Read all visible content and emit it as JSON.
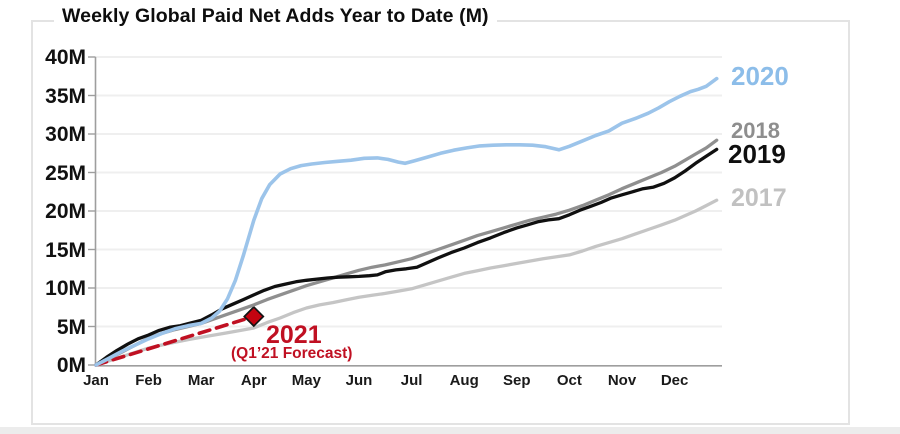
{
  "chart_data": {
    "type": "line",
    "title": "Weekly Global Paid Net Adds Year to Date (M)",
    "xlabel": "",
    "ylabel": "",
    "x_unit": "months, Jan = 0",
    "x_tick_labels": [
      "Jan",
      "Feb",
      "Mar",
      "Apr",
      "May",
      "Jun",
      "Jul",
      "Aug",
      "Sep",
      "Oct",
      "Nov",
      "Dec"
    ],
    "y_tick_labels": [
      "0M",
      "5M",
      "10M",
      "15M",
      "20M",
      "25M",
      "30M",
      "35M",
      "40M"
    ],
    "y_tick_values": [
      0,
      5,
      10,
      15,
      20,
      25,
      30,
      35,
      40
    ],
    "ylim": [
      0,
      40
    ],
    "xlim_months": [
      0,
      11.8
    ],
    "grid": "horizontal-light",
    "legend_position": "right-end-of-line-labels",
    "axis_color": "#9e9e9e",
    "grid_color": "#efefef",
    "series": [
      {
        "name": "2017",
        "color": "#c5c5c5",
        "label_color": "#c1c1c1",
        "style": "solid",
        "points": [
          [
            0,
            0
          ],
          [
            0.25,
            0.55
          ],
          [
            0.5,
            1.1
          ],
          [
            0.75,
            1.65
          ],
          [
            1,
            2.2
          ],
          [
            1.25,
            2.6
          ],
          [
            1.5,
            2.95
          ],
          [
            1.75,
            3.3
          ],
          [
            2,
            3.6
          ],
          [
            2.25,
            3.9
          ],
          [
            2.5,
            4.2
          ],
          [
            2.75,
            4.5
          ],
          [
            3,
            4.8
          ],
          [
            3.25,
            5.5
          ],
          [
            3.5,
            6.1
          ],
          [
            3.75,
            6.8
          ],
          [
            4,
            7.4
          ],
          [
            4.25,
            7.8
          ],
          [
            4.5,
            8.1
          ],
          [
            4.75,
            8.45
          ],
          [
            5,
            8.8
          ],
          [
            5.25,
            9.05
          ],
          [
            5.5,
            9.3
          ],
          [
            5.75,
            9.6
          ],
          [
            6,
            9.9
          ],
          [
            6.25,
            10.4
          ],
          [
            6.5,
            10.9
          ],
          [
            6.75,
            11.4
          ],
          [
            7,
            11.9
          ],
          [
            7.25,
            12.25
          ],
          [
            7.5,
            12.6
          ],
          [
            7.75,
            12.9
          ],
          [
            8,
            13.2
          ],
          [
            8.5,
            13.8
          ],
          [
            9,
            14.3
          ],
          [
            9.25,
            14.8
          ],
          [
            9.5,
            15.4
          ],
          [
            9.75,
            15.9
          ],
          [
            10,
            16.4
          ],
          [
            10.25,
            17.0
          ],
          [
            10.5,
            17.6
          ],
          [
            10.75,
            18.2
          ],
          [
            11,
            18.8
          ],
          [
            11.2,
            19.4
          ],
          [
            11.4,
            20.0
          ],
          [
            11.6,
            20.7
          ],
          [
            11.8,
            21.4
          ]
        ]
      },
      {
        "name": "2021",
        "color": "#c01022",
        "label_color": "#c01022",
        "style": "dashed",
        "annotation_sub": "(Q1’21 Forecast)",
        "points": [
          [
            0,
            0
          ],
          [
            3,
            6.3
          ]
        ],
        "marker": {
          "shape": "diamond",
          "month": 3,
          "value": 6.3,
          "fill": "#c40310",
          "stroke": "#141414"
        }
      },
      {
        "name": "2018",
        "color": "#8f8f8f",
        "label_color": "#8e8e8e",
        "style": "solid",
        "points": [
          [
            0,
            0
          ],
          [
            0.25,
            0.85
          ],
          [
            0.5,
            1.7
          ],
          [
            0.75,
            2.6
          ],
          [
            1,
            3.5
          ],
          [
            1.25,
            4.1
          ],
          [
            1.5,
            4.6
          ],
          [
            1.75,
            5.0
          ],
          [
            2,
            5.4
          ],
          [
            2.25,
            6.0
          ],
          [
            2.5,
            6.6
          ],
          [
            2.75,
            7.2
          ],
          [
            3,
            7.8
          ],
          [
            3.25,
            8.5
          ],
          [
            3.5,
            9.1
          ],
          [
            3.75,
            9.7
          ],
          [
            4,
            10.3
          ],
          [
            4.25,
            10.8
          ],
          [
            4.5,
            11.3
          ],
          [
            4.75,
            11.8
          ],
          [
            5,
            12.3
          ],
          [
            5.25,
            12.7
          ],
          [
            5.5,
            13.0
          ],
          [
            5.75,
            13.4
          ],
          [
            6,
            13.8
          ],
          [
            6.25,
            14.4
          ],
          [
            6.5,
            15.0
          ],
          [
            6.75,
            15.6
          ],
          [
            7,
            16.2
          ],
          [
            7.25,
            16.8
          ],
          [
            7.5,
            17.3
          ],
          [
            7.75,
            17.8
          ],
          [
            8,
            18.3
          ],
          [
            8.25,
            18.8
          ],
          [
            8.5,
            19.2
          ],
          [
            8.75,
            19.6
          ],
          [
            9,
            20.1
          ],
          [
            9.25,
            20.7
          ],
          [
            9.5,
            21.4
          ],
          [
            9.75,
            22.1
          ],
          [
            10,
            22.9
          ],
          [
            10.25,
            23.6
          ],
          [
            10.5,
            24.3
          ],
          [
            10.75,
            25.0
          ],
          [
            11,
            25.8
          ],
          [
            11.2,
            26.6
          ],
          [
            11.4,
            27.4
          ],
          [
            11.6,
            28.2
          ],
          [
            11.8,
            29.2
          ]
        ]
      },
      {
        "name": "2019",
        "color": "#101010",
        "label_color": "#0f0f0f",
        "style": "solid",
        "points": [
          [
            0,
            0
          ],
          [
            0.2,
            1.0
          ],
          [
            0.4,
            1.9
          ],
          [
            0.6,
            2.7
          ],
          [
            0.8,
            3.4
          ],
          [
            1,
            3.9
          ],
          [
            1.2,
            4.5
          ],
          [
            1.4,
            4.9
          ],
          [
            1.6,
            5.1
          ],
          [
            1.8,
            5.45
          ],
          [
            2,
            5.8
          ],
          [
            2.2,
            6.5
          ],
          [
            2.4,
            7.3
          ],
          [
            2.6,
            7.9
          ],
          [
            2.8,
            8.5
          ],
          [
            3,
            9.1
          ],
          [
            3.2,
            9.7
          ],
          [
            3.4,
            10.2
          ],
          [
            3.6,
            10.5
          ],
          [
            3.8,
            10.8
          ],
          [
            4,
            11.0
          ],
          [
            4.2,
            11.15
          ],
          [
            4.4,
            11.3
          ],
          [
            4.6,
            11.4
          ],
          [
            4.8,
            11.45
          ],
          [
            5,
            11.5
          ],
          [
            5.2,
            11.6
          ],
          [
            5.35,
            11.7
          ],
          [
            5.5,
            12.1
          ],
          [
            5.7,
            12.35
          ],
          [
            5.9,
            12.5
          ],
          [
            6.1,
            12.7
          ],
          [
            6.3,
            13.3
          ],
          [
            6.5,
            13.9
          ],
          [
            6.75,
            14.6
          ],
          [
            7,
            15.2
          ],
          [
            7.25,
            15.9
          ],
          [
            7.5,
            16.5
          ],
          [
            7.75,
            17.2
          ],
          [
            8,
            17.8
          ],
          [
            8.2,
            18.2
          ],
          [
            8.4,
            18.6
          ],
          [
            8.6,
            18.85
          ],
          [
            8.8,
            19.0
          ],
          [
            9,
            19.5
          ],
          [
            9.2,
            20.1
          ],
          [
            9.4,
            20.6
          ],
          [
            9.6,
            21.1
          ],
          [
            9.8,
            21.7
          ],
          [
            10,
            22.1
          ],
          [
            10.2,
            22.5
          ],
          [
            10.4,
            22.9
          ],
          [
            10.6,
            23.1
          ],
          [
            10.8,
            23.6
          ],
          [
            11,
            24.3
          ],
          [
            11.2,
            25.2
          ],
          [
            11.4,
            26.2
          ],
          [
            11.6,
            27.1
          ],
          [
            11.8,
            28.0
          ]
        ]
      },
      {
        "name": "2020",
        "color": "#9cc4ea",
        "label_color": "#8cbde9",
        "style": "solid",
        "points": [
          [
            0,
            0
          ],
          [
            0.25,
            0.9
          ],
          [
            0.5,
            1.8
          ],
          [
            0.75,
            2.6
          ],
          [
            1,
            3.4
          ],
          [
            1.25,
            4.1
          ],
          [
            1.5,
            4.7
          ],
          [
            1.75,
            5.1
          ],
          [
            2,
            5.4
          ],
          [
            2.2,
            6.1
          ],
          [
            2.35,
            7.0
          ],
          [
            2.5,
            8.6
          ],
          [
            2.65,
            11.0
          ],
          [
            2.8,
            14.2
          ],
          [
            3,
            18.8
          ],
          [
            3.15,
            21.6
          ],
          [
            3.3,
            23.4
          ],
          [
            3.5,
            24.8
          ],
          [
            3.7,
            25.5
          ],
          [
            3.9,
            25.9
          ],
          [
            4.1,
            26.1
          ],
          [
            4.35,
            26.3
          ],
          [
            4.6,
            26.45
          ],
          [
            4.85,
            26.6
          ],
          [
            5.1,
            26.85
          ],
          [
            5.35,
            26.9
          ],
          [
            5.55,
            26.7
          ],
          [
            5.75,
            26.35
          ],
          [
            5.88,
            26.2
          ],
          [
            6.05,
            26.5
          ],
          [
            6.3,
            27.0
          ],
          [
            6.55,
            27.5
          ],
          [
            6.8,
            27.9
          ],
          [
            7.05,
            28.2
          ],
          [
            7.3,
            28.45
          ],
          [
            7.55,
            28.55
          ],
          [
            7.8,
            28.6
          ],
          [
            8.05,
            28.6
          ],
          [
            8.3,
            28.55
          ],
          [
            8.55,
            28.35
          ],
          [
            8.8,
            27.95
          ],
          [
            9,
            28.4
          ],
          [
            9.25,
            29.1
          ],
          [
            9.5,
            29.8
          ],
          [
            9.75,
            30.4
          ],
          [
            10,
            31.4
          ],
          [
            10.25,
            32.0
          ],
          [
            10.5,
            32.7
          ],
          [
            10.7,
            33.4
          ],
          [
            10.9,
            34.2
          ],
          [
            11.1,
            34.9
          ],
          [
            11.3,
            35.5
          ],
          [
            11.45,
            35.8
          ],
          [
            11.6,
            36.2
          ],
          [
            11.8,
            37.2
          ]
        ]
      }
    ]
  }
}
